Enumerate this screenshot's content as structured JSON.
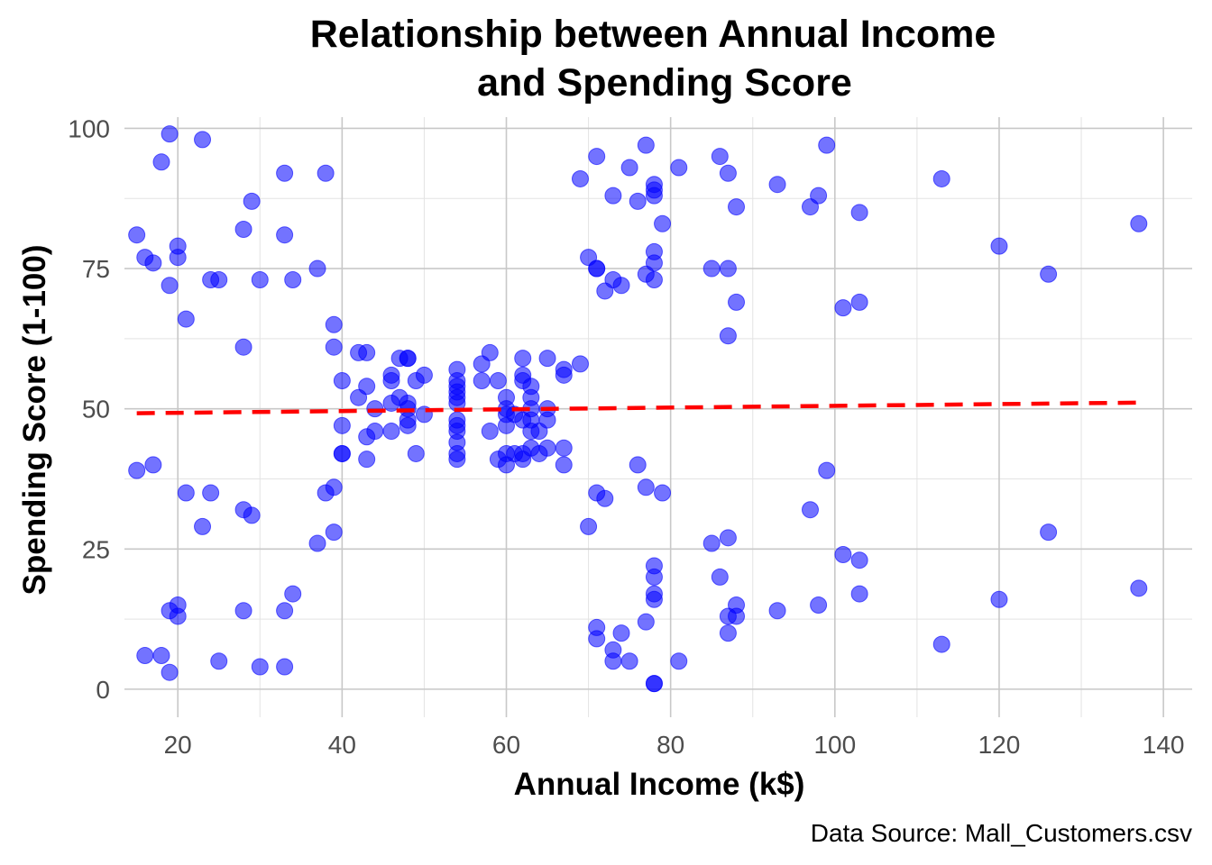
{
  "chart_data": {
    "type": "scatter",
    "title_lines": [
      "Relationship between Annual Income",
      "and Spending Score"
    ],
    "xlabel": "Annual Income (k$)",
    "ylabel": "Spending Score (1-100)",
    "caption": "Data Source: Mall_Customers.csv",
    "xlim": [
      13.5,
      143.5
    ],
    "ylim": [
      -5,
      102
    ],
    "x_ticks": [
      20,
      40,
      60,
      80,
      100,
      120,
      140
    ],
    "y_ticks": [
      0,
      25,
      50,
      75,
      100
    ],
    "x_tick_labels": [
      "20",
      "40",
      "60",
      "80",
      "100",
      "120",
      "140"
    ],
    "y_tick_labels": [
      "0",
      "25",
      "50",
      "75",
      "100"
    ],
    "x_minor_ticks": [
      30,
      50,
      70,
      90,
      110,
      130
    ],
    "y_minor_ticks": [
      12.5,
      37.5,
      62.5,
      87.5
    ],
    "grid": true,
    "legend": "none",
    "point_color": "#0000ff",
    "trend_color": "#ff0000",
    "series": [
      {
        "points": [
          [
            15,
            39
          ],
          [
            15,
            81
          ],
          [
            16,
            6
          ],
          [
            16,
            77
          ],
          [
            17,
            40
          ],
          [
            17,
            76
          ],
          [
            18,
            6
          ],
          [
            18,
            94
          ],
          [
            19,
            3
          ],
          [
            19,
            72
          ],
          [
            19,
            14
          ],
          [
            19,
            99
          ],
          [
            20,
            15
          ],
          [
            20,
            77
          ],
          [
            20,
            13
          ],
          [
            20,
            79
          ],
          [
            21,
            35
          ],
          [
            21,
            66
          ],
          [
            23,
            29
          ],
          [
            23,
            98
          ],
          [
            24,
            35
          ],
          [
            24,
            73
          ],
          [
            25,
            5
          ],
          [
            25,
            73
          ],
          [
            28,
            14
          ],
          [
            28,
            82
          ],
          [
            28,
            32
          ],
          [
            28,
            61
          ],
          [
            29,
            31
          ],
          [
            29,
            87
          ],
          [
            30,
            4
          ],
          [
            30,
            73
          ],
          [
            33,
            4
          ],
          [
            33,
            92
          ],
          [
            33,
            14
          ],
          [
            33,
            81
          ],
          [
            34,
            17
          ],
          [
            34,
            73
          ],
          [
            37,
            26
          ],
          [
            37,
            75
          ],
          [
            38,
            35
          ],
          [
            38,
            92
          ],
          [
            39,
            36
          ],
          [
            39,
            61
          ],
          [
            39,
            28
          ],
          [
            39,
            65
          ],
          [
            40,
            55
          ],
          [
            40,
            47
          ],
          [
            40,
            42
          ],
          [
            40,
            42
          ],
          [
            42,
            52
          ],
          [
            42,
            60
          ],
          [
            43,
            54
          ],
          [
            43,
            60
          ],
          [
            43,
            45
          ],
          [
            43,
            41
          ],
          [
            44,
            50
          ],
          [
            44,
            46
          ],
          [
            46,
            51
          ],
          [
            46,
            46
          ],
          [
            46,
            56
          ],
          [
            46,
            55
          ],
          [
            47,
            52
          ],
          [
            47,
            59
          ],
          [
            48,
            51
          ],
          [
            48,
            59
          ],
          [
            48,
            50
          ],
          [
            48,
            48
          ],
          [
            48,
            59
          ],
          [
            48,
            47
          ],
          [
            49,
            55
          ],
          [
            49,
            42
          ],
          [
            50,
            49
          ],
          [
            50,
            56
          ],
          [
            54,
            47
          ],
          [
            54,
            54
          ],
          [
            54,
            53
          ],
          [
            54,
            48
          ],
          [
            54,
            52
          ],
          [
            54,
            42
          ],
          [
            54,
            51
          ],
          [
            54,
            55
          ],
          [
            54,
            41
          ],
          [
            54,
            44
          ],
          [
            54,
            57
          ],
          [
            54,
            46
          ],
          [
            57,
            58
          ],
          [
            57,
            55
          ],
          [
            58,
            60
          ],
          [
            58,
            46
          ],
          [
            59,
            55
          ],
          [
            59,
            41
          ],
          [
            60,
            49
          ],
          [
            60,
            40
          ],
          [
            60,
            42
          ],
          [
            60,
            52
          ],
          [
            60,
            47
          ],
          [
            60,
            50
          ],
          [
            61,
            42
          ],
          [
            61,
            49
          ],
          [
            62,
            41
          ],
          [
            62,
            48
          ],
          [
            62,
            59
          ],
          [
            62,
            55
          ],
          [
            62,
            56
          ],
          [
            62,
            42
          ],
          [
            63,
            50
          ],
          [
            63,
            46
          ],
          [
            63,
            43
          ],
          [
            63,
            48
          ],
          [
            63,
            52
          ],
          [
            63,
            54
          ],
          [
            64,
            42
          ],
          [
            64,
            46
          ],
          [
            65,
            48
          ],
          [
            65,
            50
          ],
          [
            65,
            43
          ],
          [
            65,
            59
          ],
          [
            67,
            43
          ],
          [
            67,
            57
          ],
          [
            67,
            56
          ],
          [
            67,
            40
          ],
          [
            69,
            58
          ],
          [
            69,
            91
          ],
          [
            70,
            29
          ],
          [
            70,
            77
          ],
          [
            71,
            35
          ],
          [
            71,
            95
          ],
          [
            71,
            11
          ],
          [
            71,
            75
          ],
          [
            71,
            9
          ],
          [
            71,
            75
          ],
          [
            72,
            34
          ],
          [
            72,
            71
          ],
          [
            73,
            5
          ],
          [
            73,
            88
          ],
          [
            73,
            7
          ],
          [
            73,
            73
          ],
          [
            74,
            10
          ],
          [
            74,
            72
          ],
          [
            75,
            5
          ],
          [
            75,
            93
          ],
          [
            76,
            40
          ],
          [
            76,
            87
          ],
          [
            77,
            12
          ],
          [
            77,
            97
          ],
          [
            77,
            36
          ],
          [
            77,
            74
          ],
          [
            78,
            22
          ],
          [
            78,
            90
          ],
          [
            78,
            17
          ],
          [
            78,
            88
          ],
          [
            78,
            20
          ],
          [
            78,
            76
          ],
          [
            78,
            16
          ],
          [
            78,
            89
          ],
          [
            78,
            1
          ],
          [
            78,
            78
          ],
          [
            78,
            1
          ],
          [
            78,
            73
          ],
          [
            79,
            35
          ],
          [
            79,
            83
          ],
          [
            81,
            5
          ],
          [
            81,
            93
          ],
          [
            85,
            26
          ],
          [
            85,
            75
          ],
          [
            86,
            20
          ],
          [
            86,
            95
          ],
          [
            87,
            27
          ],
          [
            87,
            63
          ],
          [
            87,
            13
          ],
          [
            87,
            75
          ],
          [
            87,
            10
          ],
          [
            87,
            92
          ],
          [
            88,
            13
          ],
          [
            88,
            86
          ],
          [
            88,
            15
          ],
          [
            88,
            69
          ],
          [
            93,
            14
          ],
          [
            93,
            90
          ],
          [
            97,
            32
          ],
          [
            97,
            86
          ],
          [
            98,
            15
          ],
          [
            98,
            88
          ],
          [
            99,
            39
          ],
          [
            99,
            97
          ],
          [
            101,
            24
          ],
          [
            101,
            68
          ],
          [
            103,
            17
          ],
          [
            103,
            85
          ],
          [
            103,
            23
          ],
          [
            103,
            69
          ],
          [
            113,
            8
          ],
          [
            113,
            91
          ],
          [
            120,
            16
          ],
          [
            120,
            79
          ],
          [
            126,
            28
          ],
          [
            126,
            74
          ],
          [
            137,
            18
          ],
          [
            137,
            83
          ]
        ]
      }
    ],
    "trend_line": {
      "style": "dashed",
      "x": [
        15,
        137
      ],
      "y": [
        49.2,
        51.1
      ]
    }
  }
}
